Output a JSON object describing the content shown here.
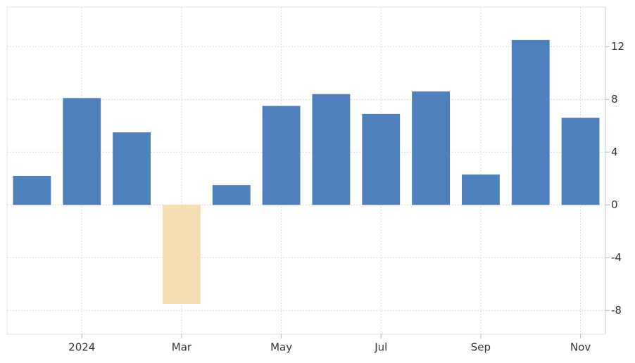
{
  "chart_data": {
    "type": "bar",
    "categories": [
      null,
      "2024",
      null,
      "Mar",
      null,
      "May",
      null,
      "Jul",
      null,
      "Sep",
      null,
      "Nov"
    ],
    "values": [
      2.2,
      8.1,
      5.5,
      -7.5,
      1.5,
      7.5,
      8.4,
      6.9,
      8.6,
      2.3,
      12.5,
      6.6
    ],
    "color": "#4d80bd",
    "negative_color": "#f5deb3",
    "ylim": [
      -9.8,
      15
    ],
    "yticks": [
      -8,
      -4,
      0,
      4,
      8,
      12
    ],
    "grid": true
  }
}
